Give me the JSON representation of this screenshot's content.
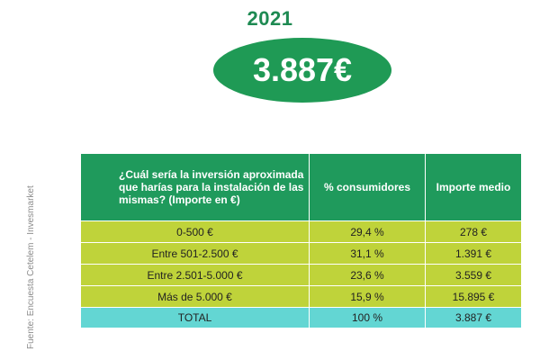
{
  "header": {
    "year": "2021",
    "average_amount": "3.887€"
  },
  "source_note": "Fuente: Encuesta Cetelem - Invesmarket",
  "table": {
    "headers": [
      "¿Cuál sería la inversión aproximada que harías para la instalación de las mismas? (Importe en €)",
      "% consumidores",
      "Importe medio"
    ],
    "rows": [
      [
        "0-500 €",
        "29,4 %",
        "278 €"
      ],
      [
        "Entre 501-2.500 €",
        "31,1 %",
        "1.391 €"
      ],
      [
        "Entre 2.501-5.000 €",
        "23,6 %",
        "3.559 €"
      ],
      [
        "Más de 5.000 €",
        "15,9 %",
        "15.895 €"
      ]
    ],
    "total": [
      "TOTAL",
      "100 %",
      "3.887 €"
    ]
  },
  "colors": {
    "header_green": "#1f9a5c",
    "row_lime": "#bfd33a",
    "total_cyan": "#63d6d3",
    "title_green": "#1e8a52"
  }
}
